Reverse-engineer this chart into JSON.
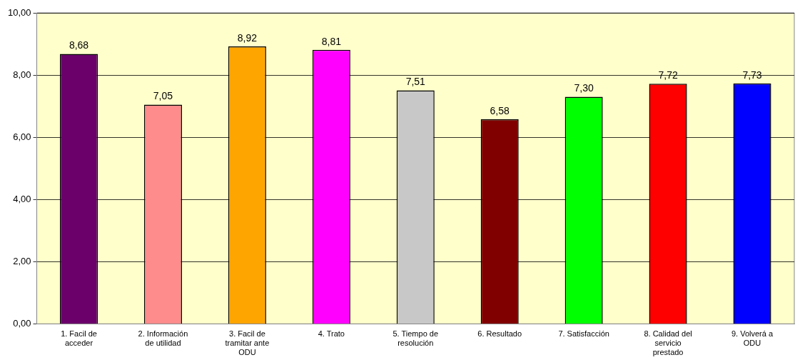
{
  "chart_data": {
    "type": "bar",
    "categories": [
      "1. Facil de acceder",
      "2. Información de utilidad",
      "3. Facil de tramitar ante ODU",
      "4. Trato",
      "5. Tiempo de resolución",
      "6. Resultado",
      "7. Satisfacción",
      "8. Calidad del servicio prestado",
      "9. Volverá a ODU"
    ],
    "values": [
      8.68,
      7.05,
      8.92,
      8.81,
      7.51,
      6.58,
      7.3,
      7.72,
      7.73
    ],
    "value_labels": [
      "8,68",
      "7,05",
      "8,92",
      "8,81",
      "7,51",
      "6,58",
      "7,30",
      "7,72",
      "7,73"
    ],
    "colors": [
      "#6b006b",
      "#ff8c8c",
      "#ffa500",
      "#ff00ff",
      "#c8c8c8",
      "#800000",
      "#00ff00",
      "#ff0000",
      "#0000ff"
    ],
    "ylim": [
      0,
      10
    ],
    "yticks": [
      {
        "value": 0,
        "label": "0,00"
      },
      {
        "value": 2,
        "label": "2,00"
      },
      {
        "value": 4,
        "label": "4,00"
      },
      {
        "value": 6,
        "label": "6,00"
      },
      {
        "value": 8,
        "label": "8,00"
      },
      {
        "value": 10,
        "label": "10,00"
      }
    ],
    "grid": "y",
    "legend": false
  }
}
